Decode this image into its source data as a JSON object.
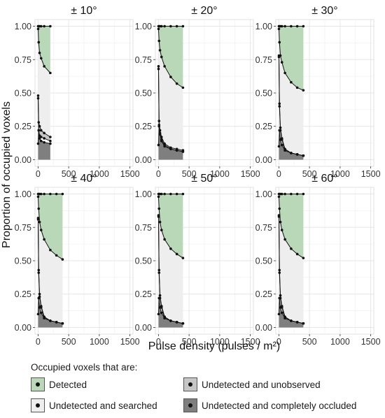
{
  "chart_data": {
    "type": "area",
    "ylabel": "Proportion of occupied voxels",
    "xlabel": "Pulse density (pulses / m²)",
    "xlim": [
      -50,
      1550
    ],
    "ylim": [
      -0.05,
      1.05
    ],
    "x_ticks": [
      0,
      500,
      1000,
      1500
    ],
    "y_ticks": [
      "0.00",
      "0.25",
      "0.50",
      "0.75",
      "1.00"
    ],
    "grid": true,
    "legend_placement": "bottom",
    "legend_title": "Occupied voxels that are:",
    "colors": {
      "detected": "#b9d8b8",
      "searched": "#eeeeee",
      "unobserved": "#c6c6c6",
      "occluded": "#7f7f7f",
      "panel_strip": "#ffffff",
      "grid": "#e6e6e6"
    },
    "legend": [
      {
        "key": "detected",
        "label": "Detected"
      },
      {
        "key": "searched",
        "label": "Undetected and searched"
      },
      {
        "key": "unobserved",
        "label": "Undetected and unobserved"
      },
      {
        "key": "occluded",
        "label": "Undetected and completely occluded"
      }
    ],
    "panels": [
      {
        "title": "± 10°",
        "x": [
          1,
          10,
          25,
          50,
          100,
          200
        ],
        "total": [
          1.0,
          1.0,
          1.0,
          1.0,
          1.0,
          1.0
        ],
        "detected_boundary": [
          0.98,
          0.88,
          0.8,
          0.76,
          0.7,
          0.65
        ],
        "searched_boundary": [
          0.48,
          0.28,
          0.25,
          0.22,
          0.2,
          0.17
        ],
        "unobserved_boundary": [
          0.46,
          0.22,
          0.18,
          0.17,
          0.16,
          0.14
        ],
        "occluded_boundary": [
          0.12,
          0.22,
          0.16,
          0.14,
          0.13,
          0.12
        ]
      },
      {
        "title": "± 20°",
        "x": [
          1,
          10,
          25,
          50,
          100,
          200,
          300,
          400
        ],
        "total": [
          1.0,
          1.0,
          1.0,
          1.0,
          1.0,
          1.0,
          1.0,
          1.0
        ],
        "detected_boundary": [
          0.98,
          0.89,
          0.82,
          0.77,
          0.7,
          0.62,
          0.57,
          0.54
        ],
        "searched_boundary": [
          0.7,
          0.29,
          0.22,
          0.17,
          0.12,
          0.09,
          0.08,
          0.07
        ],
        "unobserved_boundary": [
          0.68,
          0.26,
          0.2,
          0.15,
          0.11,
          0.08,
          0.07,
          0.06
        ],
        "occluded_boundary": [
          0.11,
          0.25,
          0.19,
          0.14,
          0.1,
          0.08,
          0.07,
          0.06
        ]
      },
      {
        "title": "± 30°",
        "x": [
          1,
          10,
          25,
          50,
          100,
          200,
          300,
          400
        ],
        "total": [
          1.0,
          1.0,
          1.0,
          1.0,
          1.0,
          1.0,
          1.0,
          1.0
        ],
        "detected_boundary": [
          0.98,
          0.88,
          0.78,
          0.73,
          0.65,
          0.58,
          0.54,
          0.52
        ],
        "searched_boundary": [
          0.78,
          0.42,
          0.24,
          0.16,
          0.08,
          0.05,
          0.04,
          0.03
        ],
        "unobserved_boundary": [
          0.77,
          0.4,
          0.22,
          0.15,
          0.07,
          0.05,
          0.04,
          0.03
        ],
        "occluded_boundary": [
          0.1,
          0.22,
          0.15,
          0.11,
          0.07,
          0.05,
          0.04,
          0.03
        ]
      },
      {
        "title": "± 40°",
        "x": [
          1,
          10,
          25,
          50,
          100,
          200,
          300,
          400
        ],
        "total": [
          1.0,
          1.0,
          1.0,
          1.0,
          1.0,
          1.0,
          1.0,
          1.0
        ],
        "detected_boundary": [
          0.98,
          0.89,
          0.79,
          0.73,
          0.66,
          0.58,
          0.54,
          0.51
        ],
        "searched_boundary": [
          0.82,
          0.43,
          0.25,
          0.16,
          0.08,
          0.05,
          0.04,
          0.03
        ],
        "unobserved_boundary": [
          0.81,
          0.41,
          0.23,
          0.15,
          0.07,
          0.05,
          0.04,
          0.03
        ],
        "occluded_boundary": [
          0.1,
          0.22,
          0.15,
          0.11,
          0.07,
          0.05,
          0.04,
          0.03
        ]
      },
      {
        "title": "± 50°",
        "x": [
          1,
          10,
          25,
          50,
          100,
          200,
          300,
          400
        ],
        "total": [
          1.0,
          1.0,
          1.0,
          1.0,
          1.0,
          1.0,
          1.0,
          1.0
        ],
        "detected_boundary": [
          0.98,
          0.89,
          0.79,
          0.73,
          0.66,
          0.59,
          0.55,
          0.52
        ],
        "searched_boundary": [
          0.84,
          0.43,
          0.24,
          0.16,
          0.08,
          0.05,
          0.04,
          0.03
        ],
        "unobserved_boundary": [
          0.83,
          0.41,
          0.22,
          0.15,
          0.07,
          0.05,
          0.04,
          0.03
        ],
        "occluded_boundary": [
          0.1,
          0.22,
          0.15,
          0.11,
          0.07,
          0.05,
          0.04,
          0.03
        ]
      },
      {
        "title": "± 60°",
        "x": [
          1,
          10,
          25,
          50,
          100,
          200,
          300,
          400
        ],
        "total": [
          1.0,
          1.0,
          1.0,
          1.0,
          1.0,
          1.0,
          1.0,
          1.0
        ],
        "detected_boundary": [
          0.98,
          0.89,
          0.79,
          0.73,
          0.66,
          0.59,
          0.55,
          0.52
        ],
        "searched_boundary": [
          0.84,
          0.43,
          0.24,
          0.16,
          0.08,
          0.05,
          0.04,
          0.03
        ],
        "unobserved_boundary": [
          0.83,
          0.41,
          0.22,
          0.15,
          0.07,
          0.05,
          0.04,
          0.03
        ],
        "occluded_boundary": [
          0.1,
          0.22,
          0.15,
          0.11,
          0.07,
          0.05,
          0.04,
          0.03
        ]
      }
    ]
  }
}
